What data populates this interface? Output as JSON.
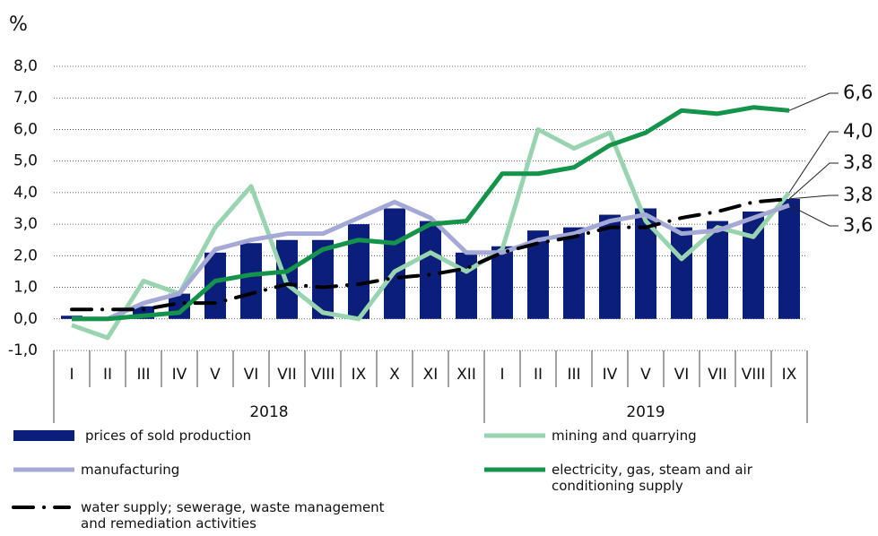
{
  "chart_data": {
    "type": "bar",
    "y_unit": "%",
    "categories": [
      "I",
      "II",
      "III",
      "IV",
      "V",
      "VI",
      "VII",
      "VIII",
      "IX",
      "X",
      "XI",
      "XII",
      "I",
      "II",
      "III",
      "IV",
      "V",
      "VI",
      "VII",
      "VIII",
      "IX"
    ],
    "groups": [
      {
        "label": "2018",
        "count": 12
      },
      {
        "label": "2019",
        "count": 9
      }
    ],
    "ylim": [
      -1,
      8
    ],
    "yticks": [
      {
        "value": -1,
        "label": "-1,0"
      },
      {
        "value": 0,
        "label": "0,0"
      },
      {
        "value": 1,
        "label": "1,0"
      },
      {
        "value": 2,
        "label": "2,0"
      },
      {
        "value": 3,
        "label": "3,0"
      },
      {
        "value": 4,
        "label": "4,0"
      },
      {
        "value": 5,
        "label": "5,0"
      },
      {
        "value": 6,
        "label": "6,0"
      },
      {
        "value": 7,
        "label": "7,0"
      },
      {
        "value": 8,
        "label": "8,0"
      }
    ],
    "grid": true,
    "series": [
      {
        "name": "prices of sold production",
        "type": "bar",
        "color": "#0b1f7a",
        "values": [
          0.1,
          0.0,
          0.4,
          0.8,
          2.1,
          2.4,
          2.5,
          2.5,
          3.0,
          3.5,
          3.1,
          2.1,
          2.3,
          2.8,
          2.9,
          3.3,
          3.5,
          2.9,
          3.1,
          3.4,
          3.8
        ],
        "value_labels": [
          null,
          null,
          null,
          null,
          null,
          null,
          null,
          null,
          null,
          null,
          null,
          null,
          null,
          null,
          null,
          null,
          null,
          null,
          null,
          null,
          "3,8"
        ]
      },
      {
        "name": "mining and quarrying",
        "type": "line",
        "color": "#99d4b0",
        "values": [
          -0.2,
          -0.6,
          1.2,
          0.8,
          2.9,
          4.2,
          1.1,
          0.2,
          0.0,
          1.5,
          2.1,
          1.5,
          2.2,
          6.0,
          5.4,
          5.9,
          3.1,
          1.9,
          2.9,
          2.6,
          4.0
        ],
        "value_labels": [
          null,
          null,
          null,
          null,
          null,
          null,
          null,
          null,
          null,
          null,
          null,
          null,
          null,
          null,
          null,
          null,
          null,
          null,
          null,
          null,
          "4,0"
        ]
      },
      {
        "name": "manufacturing",
        "type": "line",
        "color": "#a4a9d6",
        "values": [
          0.0,
          0.0,
          0.5,
          0.8,
          2.2,
          2.5,
          2.7,
          2.7,
          3.2,
          3.7,
          3.2,
          2.1,
          2.1,
          2.5,
          2.7,
          3.1,
          3.3,
          2.7,
          2.8,
          3.2,
          3.6
        ],
        "value_labels": [
          null,
          null,
          null,
          null,
          null,
          null,
          null,
          null,
          null,
          null,
          null,
          null,
          null,
          null,
          null,
          null,
          null,
          null,
          null,
          null,
          "3,6"
        ]
      },
      {
        "name": "electricity, gas, steam and air conditioning supply",
        "type": "line",
        "color": "#14934a",
        "values": [
          0.0,
          0.0,
          0.1,
          0.2,
          1.2,
          1.4,
          1.5,
          2.2,
          2.5,
          2.4,
          3.0,
          3.1,
          4.6,
          4.6,
          4.8,
          5.5,
          5.9,
          6.6,
          6.5,
          6.7,
          6.6
        ],
        "value_labels": [
          null,
          null,
          null,
          null,
          null,
          null,
          null,
          null,
          null,
          null,
          null,
          null,
          null,
          null,
          null,
          null,
          null,
          null,
          null,
          null,
          "6,6"
        ]
      },
      {
        "name": "water supply; sewerage, waste management and remediation activities",
        "type": "line",
        "dash": "dash-dot",
        "color": "#000000",
        "values": [
          0.3,
          0.3,
          0.3,
          0.5,
          0.5,
          0.8,
          1.1,
          1.0,
          1.1,
          1.3,
          1.4,
          1.6,
          2.1,
          2.4,
          2.6,
          2.9,
          2.9,
          3.2,
          3.4,
          3.7,
          3.8
        ],
        "value_labels": [
          null,
          null,
          null,
          null,
          null,
          null,
          null,
          null,
          null,
          null,
          null,
          null,
          null,
          null,
          null,
          null,
          null,
          null,
          null,
          null,
          "3,8"
        ]
      }
    ]
  }
}
